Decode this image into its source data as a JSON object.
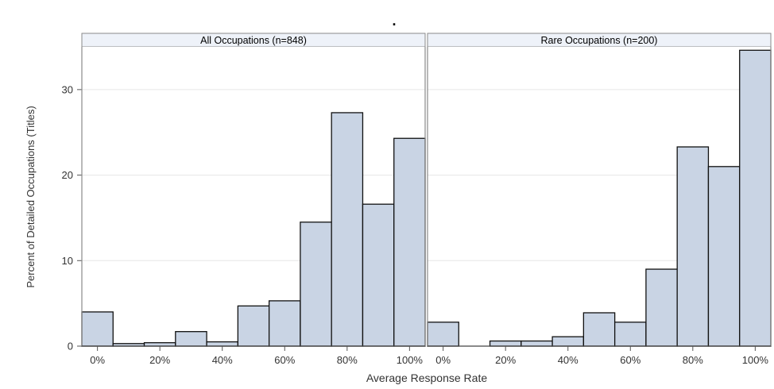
{
  "chart_data": {
    "type": "bar",
    "title": ".",
    "xlabel": "Average Response Rate",
    "ylabel": "Percent of Detailed Occupations (Titles)",
    "ylim": [
      0,
      35
    ],
    "yticks": [
      0,
      10,
      20,
      30
    ],
    "ytick_labels": [
      "0",
      "10",
      "20",
      "30"
    ],
    "xlim": [
      -5,
      105
    ],
    "xticks": [
      0,
      20,
      40,
      60,
      80,
      100
    ],
    "xtick_labels": [
      "0%",
      "20%",
      "40%",
      "60%",
      "80%",
      "100%"
    ],
    "bin_width": 10,
    "grid": "horizontal",
    "legend": "none",
    "colors": {
      "bar_fill": "#c9d4e4",
      "bar_edge": "#111111",
      "header_fill": "#eef2f9",
      "grid": "#e6e6e6",
      "frame": "#8a8a8a"
    },
    "panels": [
      {
        "title": "All Occupations (n=848)",
        "bins": [
          0,
          10,
          20,
          30,
          40,
          50,
          60,
          70,
          80,
          90,
          100
        ],
        "values": [
          4.0,
          0.3,
          0.4,
          1.7,
          0.5,
          4.7,
          5.3,
          14.5,
          27.3,
          16.6,
          24.3
        ]
      },
      {
        "title": "Rare Occupations (n=200)",
        "bins": [
          0,
          10,
          20,
          30,
          40,
          50,
          60,
          70,
          80,
          90,
          100
        ],
        "values": [
          2.8,
          0,
          0.6,
          0.6,
          1.1,
          3.9,
          2.8,
          9.0,
          23.3,
          21.0,
          34.6
        ]
      }
    ]
  }
}
